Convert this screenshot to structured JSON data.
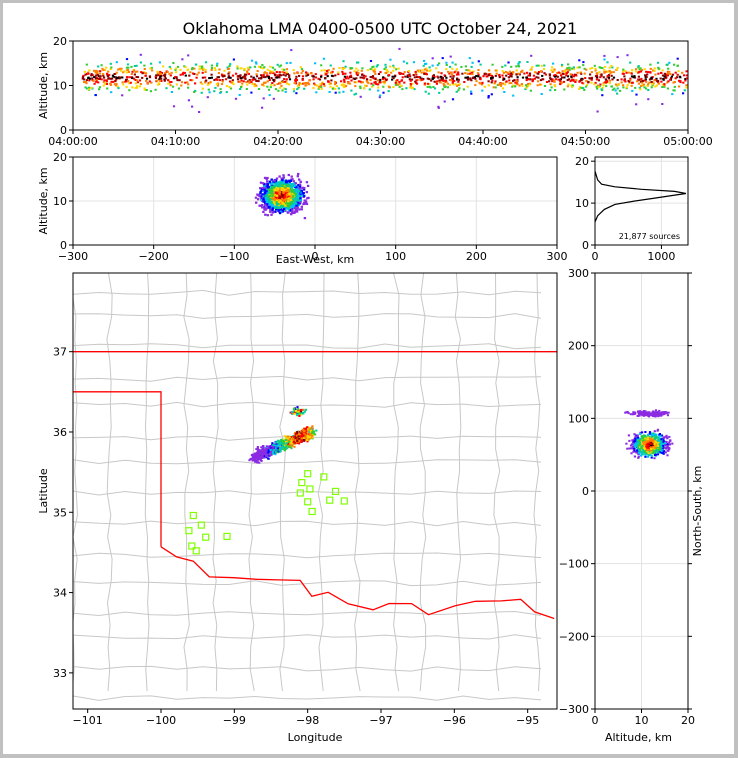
{
  "title": "Oklahoma LMA 0400-0500 UTC October 24, 2021",
  "chart_data": [
    {
      "name": "time-height",
      "type": "scatter",
      "ylabel": "Altitude, km",
      "xlabel": "",
      "xticks": [
        "04:00:00",
        "04:10:00",
        "04:20:00",
        "04:30:00",
        "04:40:00",
        "04:50:00",
        "05:00:00"
      ],
      "xlim_minutes": [
        0,
        60
      ],
      "ylim": [
        0,
        20
      ],
      "yticks": [
        0,
        10,
        20
      ],
      "description_values": {
        "core_altitude_km": [
          9,
          14
        ],
        "peak_density_km": 12
      }
    },
    {
      "name": "east-west-vs-altitude",
      "type": "scatter",
      "xlabel": "East-West, km",
      "ylabel": "Altitude, km",
      "xlim": [
        -300,
        300
      ],
      "xticks": [
        -300,
        -200,
        -100,
        0,
        100,
        200,
        300
      ],
      "ylim": [
        0,
        20
      ],
      "yticks": [
        0,
        10,
        20
      ],
      "clusters_x_km": [
        -55,
        -5
      ]
    },
    {
      "name": "altitude-histogram",
      "type": "line",
      "xlim": [
        0,
        1400
      ],
      "xticks": [
        0,
        1000
      ],
      "ylim": [
        0,
        21
      ],
      "yticks": [
        0,
        10,
        20
      ],
      "annotation": "21,877 sources",
      "profile": [
        [
          0,
          5.5
        ],
        [
          40,
          7
        ],
        [
          140,
          8.5
        ],
        [
          300,
          9.7
        ],
        [
          600,
          10.5
        ],
        [
          900,
          11.2
        ],
        [
          1150,
          11.8
        ],
        [
          1370,
          12.3
        ],
        [
          1200,
          12.8
        ],
        [
          700,
          13.3
        ],
        [
          300,
          13.9
        ],
        [
          100,
          14.5
        ],
        [
          40,
          15.5
        ],
        [
          15,
          16.8
        ],
        [
          5,
          17.5
        ]
      ]
    },
    {
      "name": "plan-view-map",
      "type": "scatter",
      "xlabel": "Longitude",
      "ylabel": "Latitude",
      "xlim": [
        -101.2,
        -94.6
      ],
      "ylim": [
        32.55,
        37.98
      ],
      "xticks": [
        -101,
        -100,
        -99,
        -98,
        -97,
        -96,
        -95
      ],
      "yticks": [
        33,
        34,
        35,
        36,
        37
      ],
      "sources_band": {
        "start": [
          -98.75,
          35.69
        ],
        "end": [
          -97.95,
          36.02
        ]
      },
      "secondary_cluster": {
        "lon": -98.15,
        "lat": 36.27
      },
      "stations": [
        [
          -99.56,
          34.96
        ],
        [
          -99.45,
          34.84
        ],
        [
          -99.62,
          34.77
        ],
        [
          -99.39,
          34.69
        ],
        [
          -99.58,
          34.58
        ],
        [
          -99.52,
          34.52
        ],
        [
          -99.1,
          34.7
        ],
        [
          -98.0,
          35.48
        ],
        [
          -98.08,
          35.37
        ],
        [
          -98.1,
          35.24
        ],
        [
          -97.97,
          35.29
        ],
        [
          -98.0,
          35.13
        ],
        [
          -97.94,
          35.01
        ],
        [
          -97.78,
          35.44
        ],
        [
          -97.7,
          35.15
        ],
        [
          -97.62,
          35.26
        ],
        [
          -97.5,
          35.14
        ]
      ]
    },
    {
      "name": "altitude-vs-north-south",
      "type": "scatter",
      "xlabel": "Altitude, km",
      "ylabel": "North-South, km",
      "xlim": [
        0,
        20
      ],
      "xticks": [
        0,
        10,
        20
      ],
      "ylim": [
        -300,
        300
      ],
      "yticks": [
        -300,
        -200,
        -100,
        0,
        100,
        200,
        300
      ],
      "clusters_ns_km": [
        65,
        108
      ]
    }
  ]
}
